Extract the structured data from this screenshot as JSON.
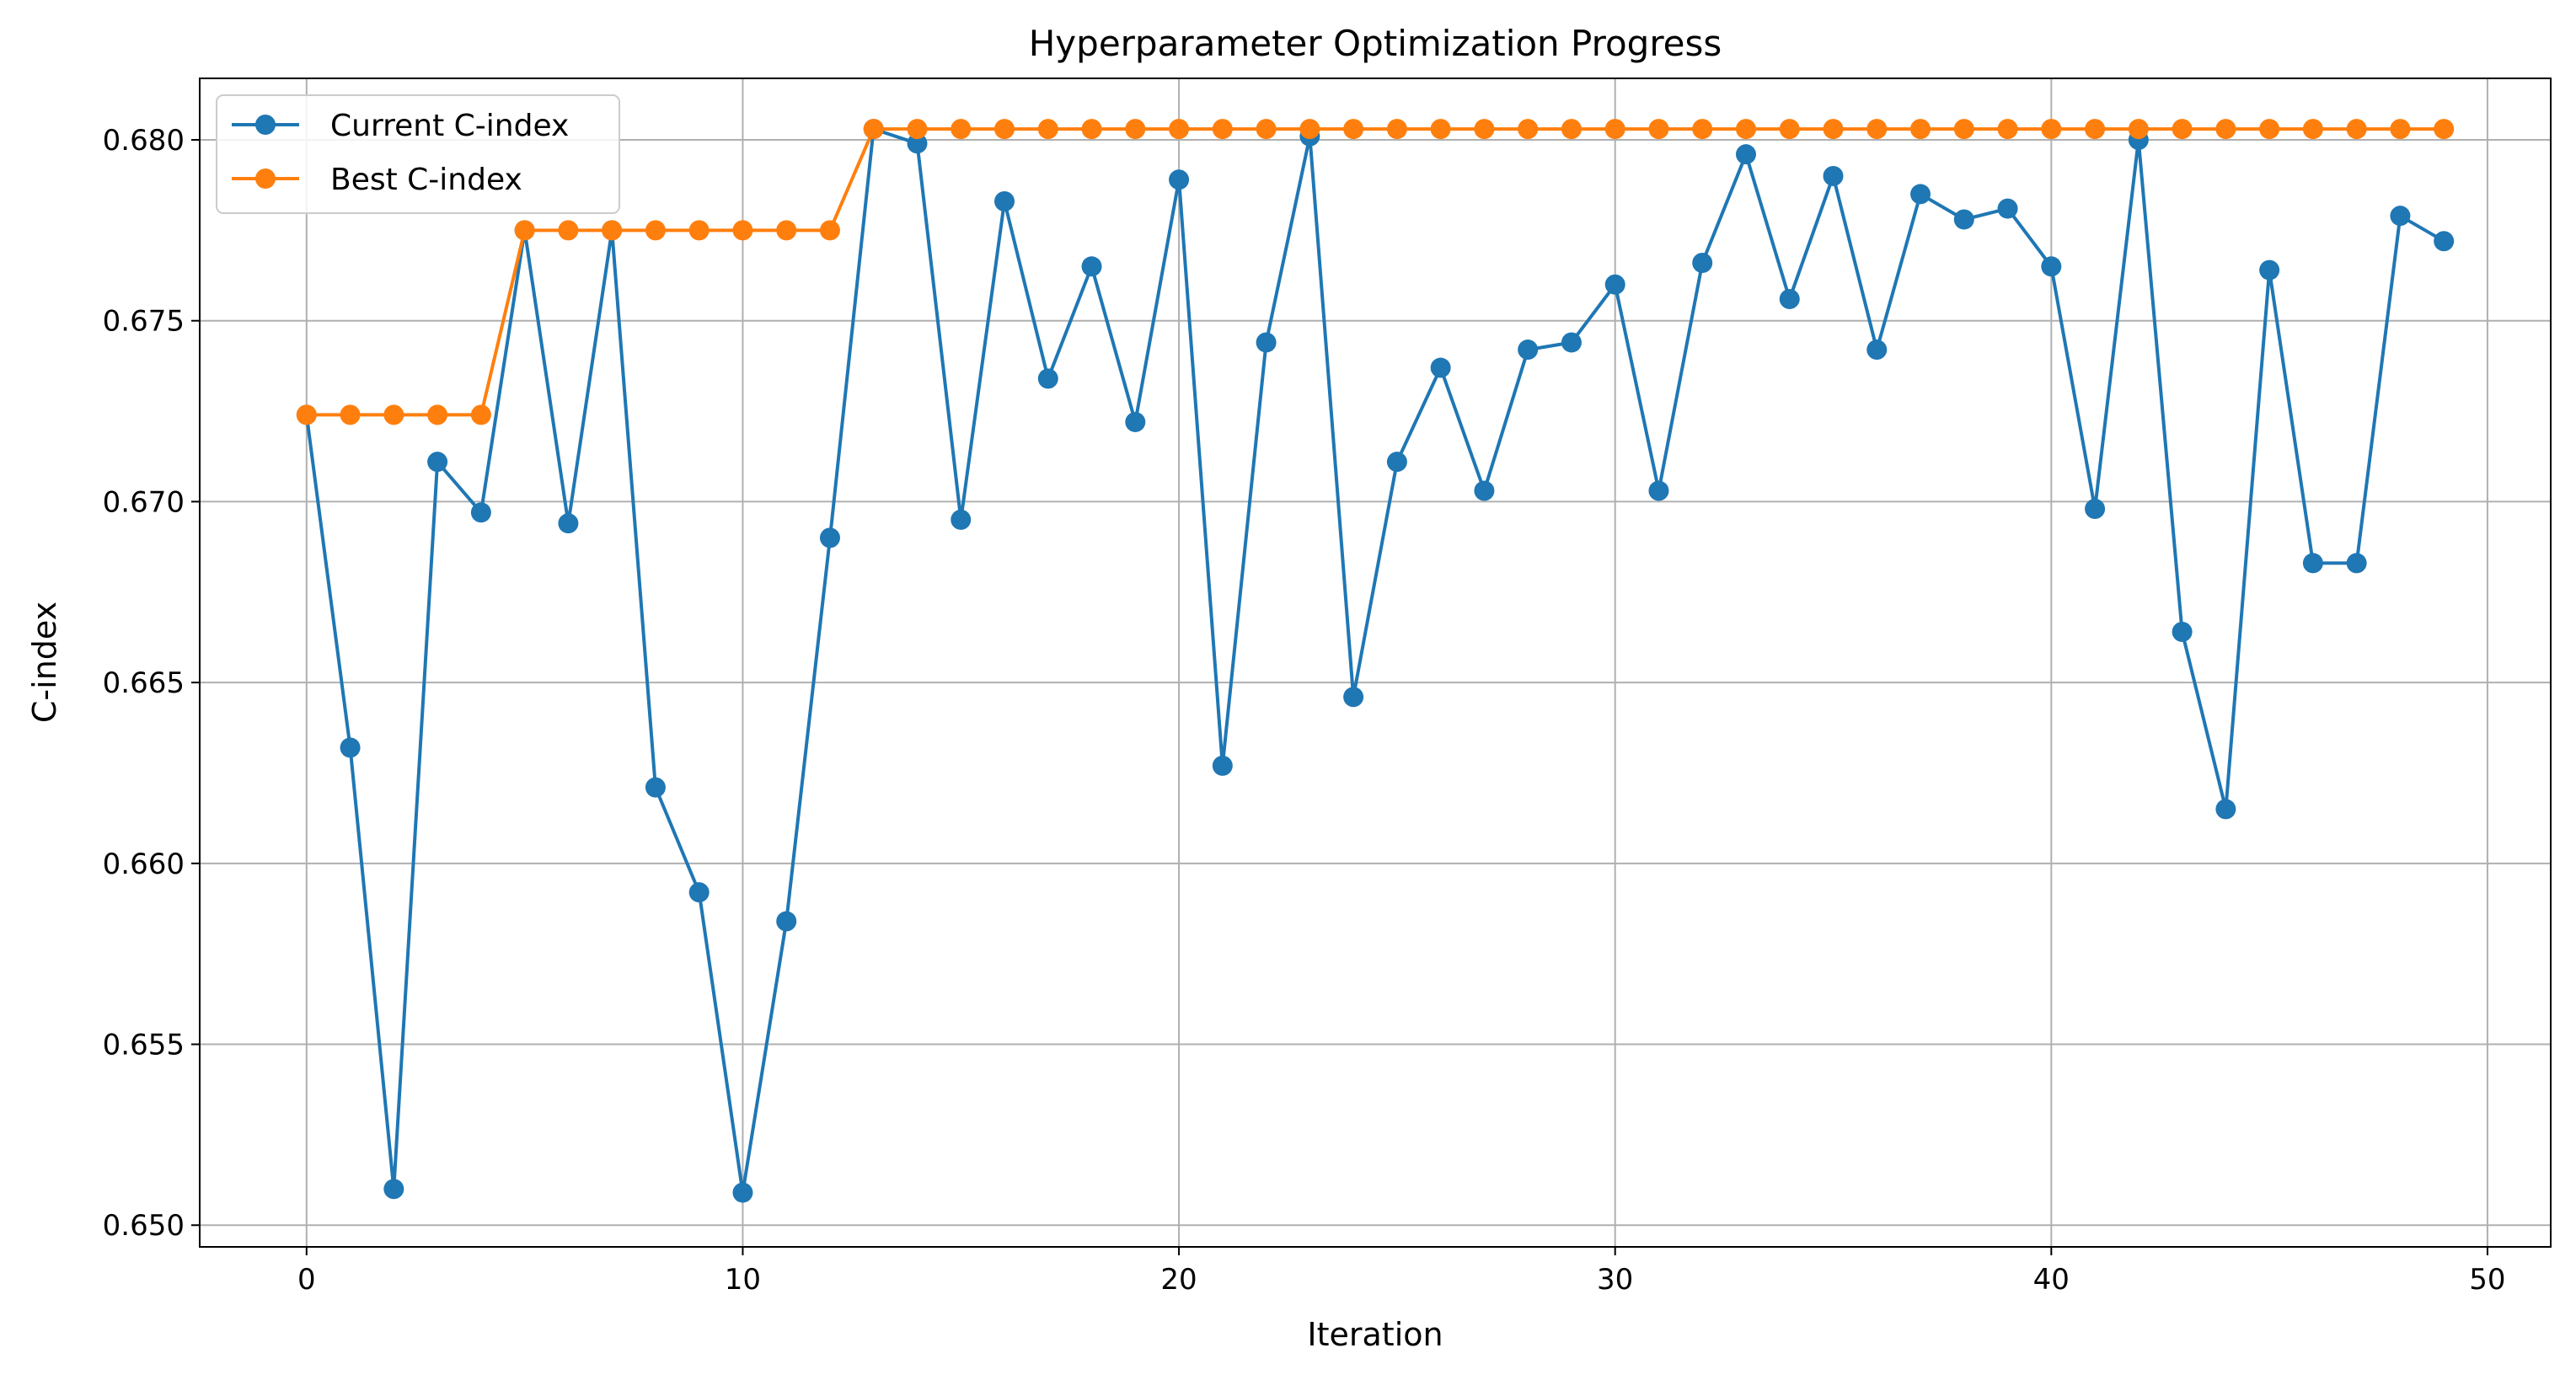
{
  "chart_data": {
    "type": "line",
    "title": "Hyperparameter Optimization Progress",
    "xlabel": "Iteration",
    "ylabel": "C-index",
    "xlim": [
      -2.45,
      51.45
    ],
    "ylim": [
      0.6494,
      0.6817
    ],
    "xticks": [
      0,
      10,
      20,
      30,
      40,
      50
    ],
    "xtick_labels": [
      "0",
      "10",
      "20",
      "30",
      "40",
      "50"
    ],
    "yticks": [
      0.65,
      0.655,
      0.66,
      0.665,
      0.67,
      0.675,
      0.68
    ],
    "ytick_labels": [
      "0.650",
      "0.655",
      "0.660",
      "0.665",
      "0.670",
      "0.675",
      "0.680"
    ],
    "grid": true,
    "legend_position": "top-left",
    "x": [
      0,
      1,
      2,
      3,
      4,
      5,
      6,
      7,
      8,
      9,
      10,
      11,
      12,
      13,
      14,
      15,
      16,
      17,
      18,
      19,
      20,
      21,
      22,
      23,
      24,
      25,
      26,
      27,
      28,
      29,
      30,
      31,
      32,
      33,
      34,
      35,
      36,
      37,
      38,
      39,
      40,
      41,
      42,
      43,
      44,
      45,
      46,
      47,
      48,
      49
    ],
    "series": [
      {
        "name": "Current C-index",
        "color": "#1f77b4",
        "marker": "circle",
        "values": [
          0.6724,
          0.6632,
          0.651,
          0.6711,
          0.6697,
          0.6775,
          0.6694,
          0.6775,
          0.6621,
          0.6592,
          0.6509,
          0.6584,
          0.669,
          0.6803,
          0.6799,
          0.6695,
          0.6783,
          0.6734,
          0.6765,
          0.6722,
          0.6789,
          0.6627,
          0.6744,
          0.6801,
          0.6646,
          0.6711,
          0.6737,
          0.6703,
          0.6742,
          0.6744,
          0.676,
          0.6703,
          0.6766,
          0.6796,
          0.6756,
          0.679,
          0.6742,
          0.6785,
          0.6778,
          0.6781,
          0.6765,
          0.6698,
          0.68,
          0.6664,
          0.6615,
          0.6764,
          0.6683,
          0.6683,
          0.6779,
          0.6772
        ]
      },
      {
        "name": "Best C-index",
        "color": "#ff7f0e",
        "marker": "circle",
        "values": [
          0.6724,
          0.6724,
          0.6724,
          0.6724,
          0.6724,
          0.6775,
          0.6775,
          0.6775,
          0.6775,
          0.6775,
          0.6775,
          0.6775,
          0.6775,
          0.6803,
          0.6803,
          0.6803,
          0.6803,
          0.6803,
          0.6803,
          0.6803,
          0.6803,
          0.6803,
          0.6803,
          0.6803,
          0.6803,
          0.6803,
          0.6803,
          0.6803,
          0.6803,
          0.6803,
          0.6803,
          0.6803,
          0.6803,
          0.6803,
          0.6803,
          0.6803,
          0.6803,
          0.6803,
          0.6803,
          0.6803,
          0.6803,
          0.6803,
          0.6803,
          0.6803,
          0.6803,
          0.6803,
          0.6803,
          0.6803,
          0.6803,
          0.6803
        ]
      }
    ]
  }
}
